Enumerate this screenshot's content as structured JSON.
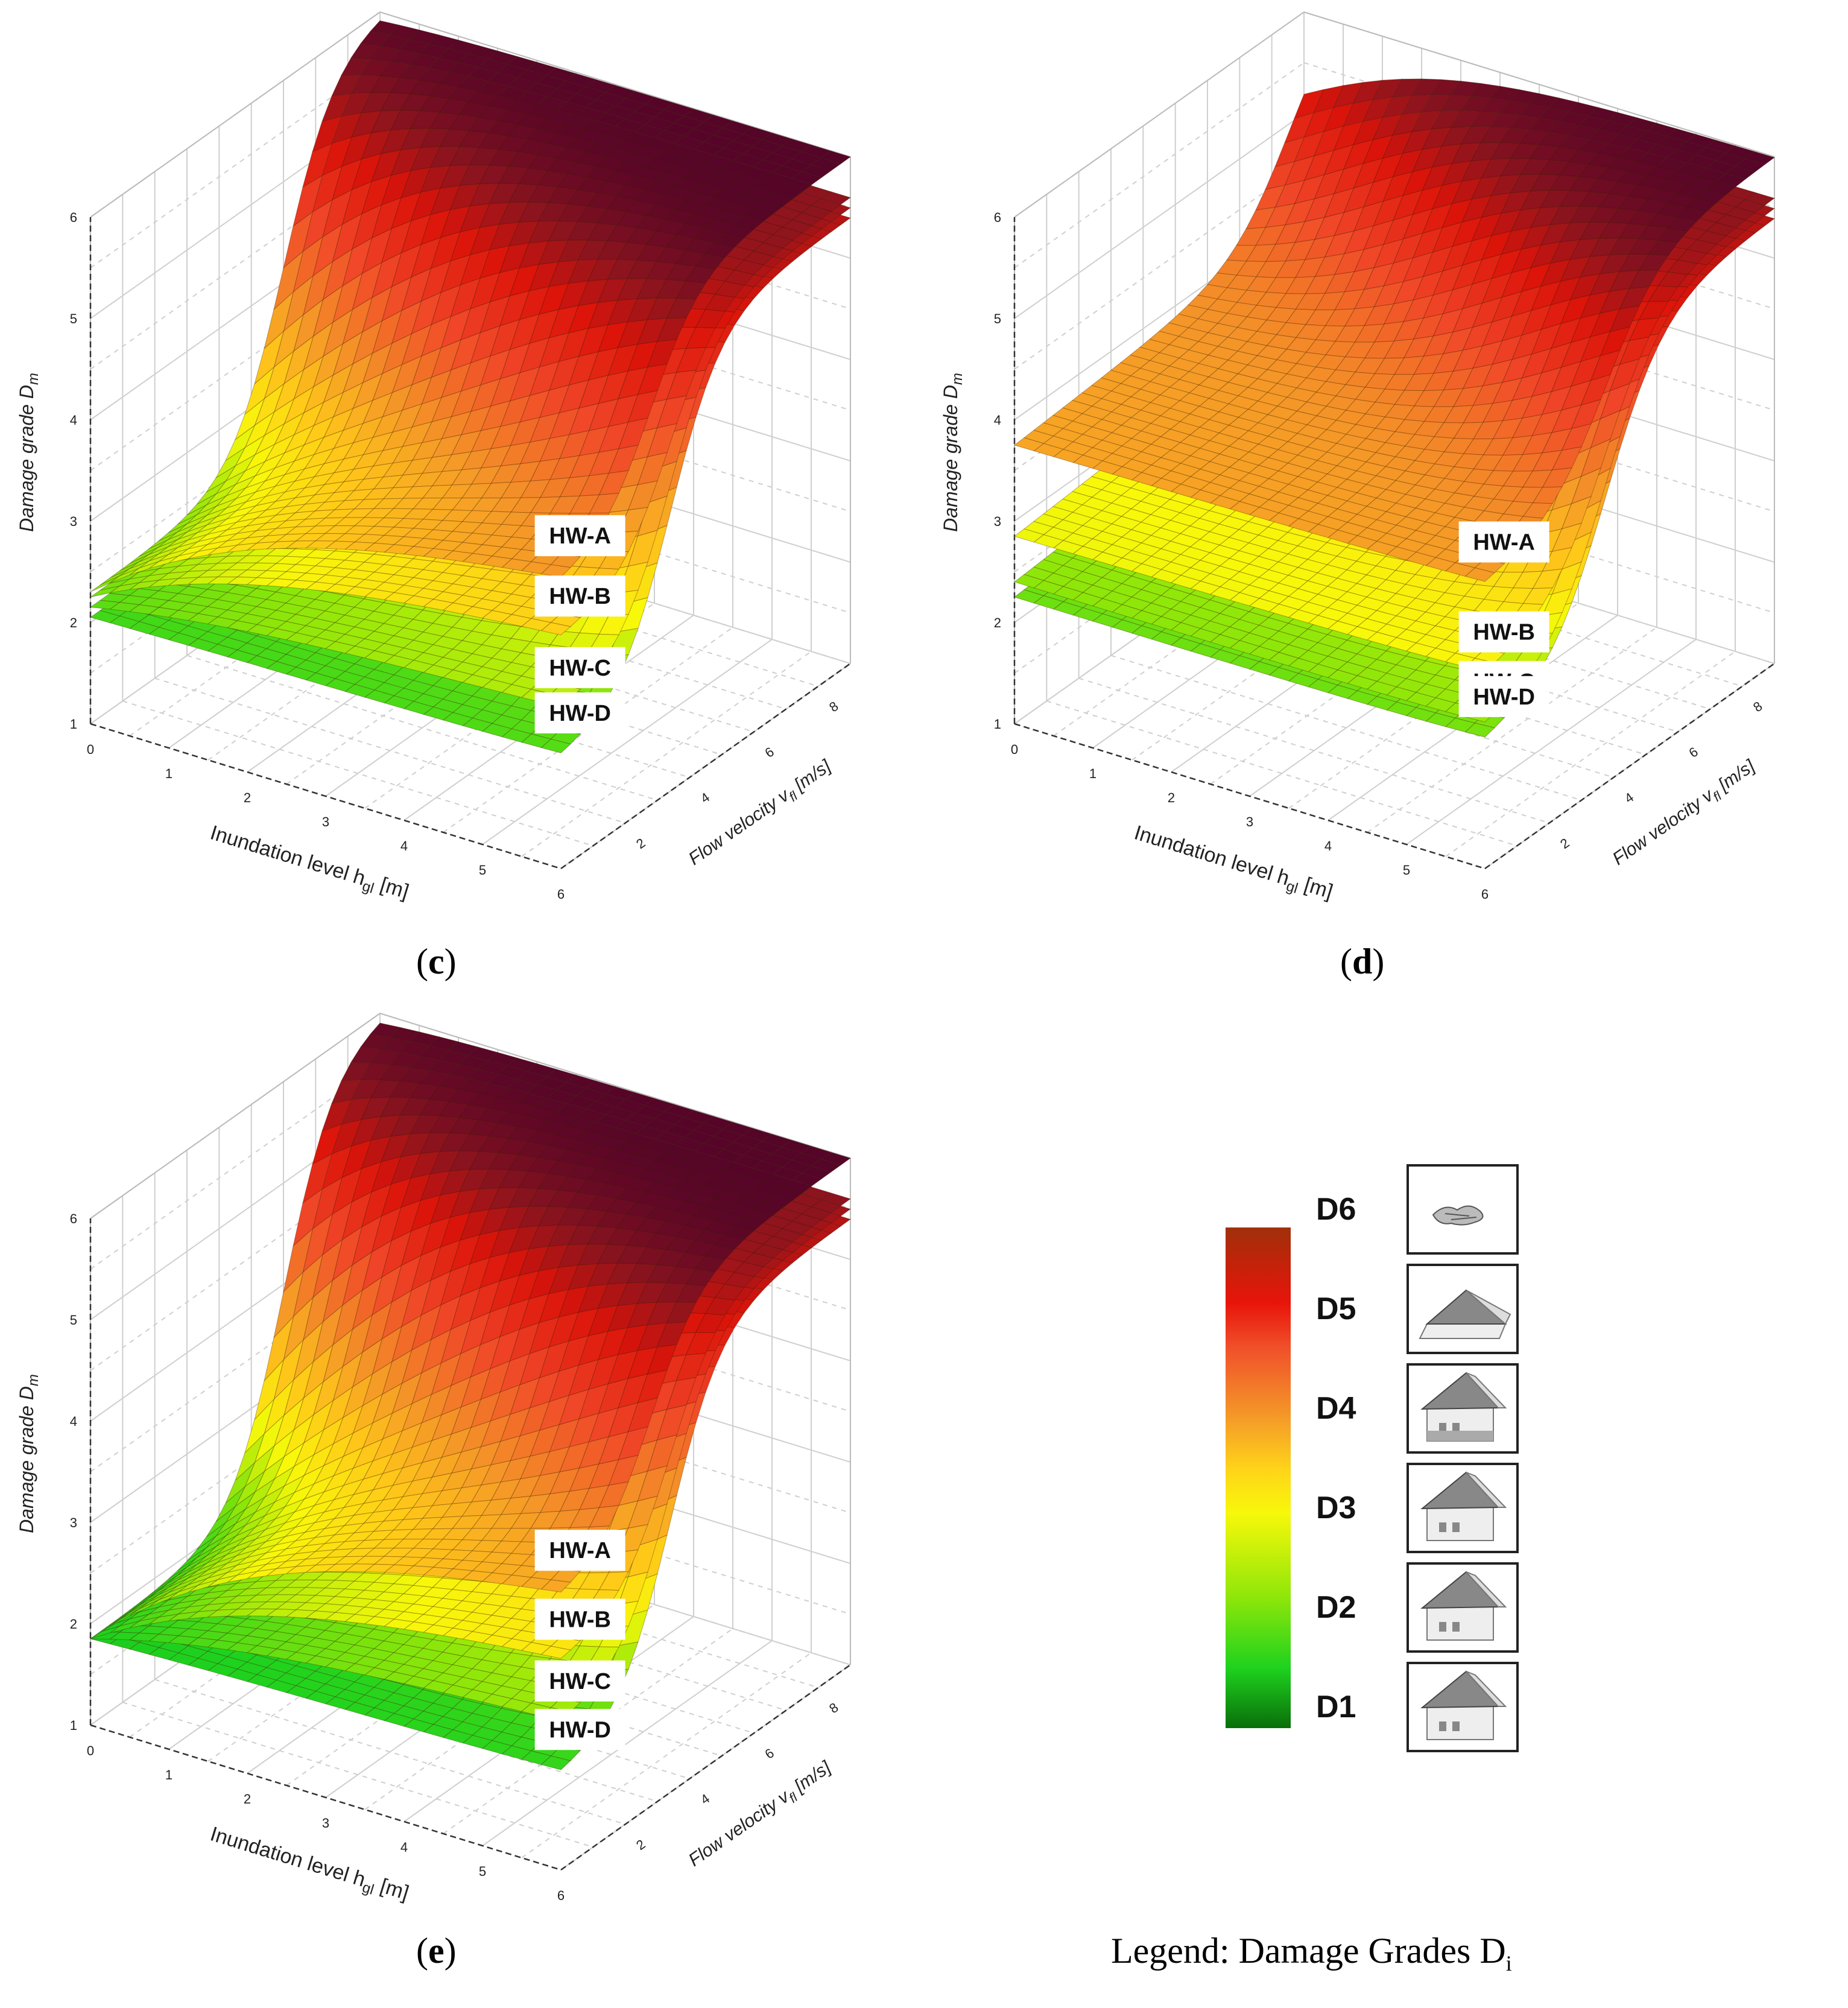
{
  "panels": [
    {
      "id": "c",
      "caption_letter": "c",
      "zlabel": "Damage grade D",
      "zlabel_sub": "m",
      "xlabel": "Inundation level h",
      "xlabel_sub": "gl",
      "xlabel_unit": " [m]",
      "ylabel": "Flow velocity v",
      "ylabel_sub": "fl",
      "ylabel_unit": " [m/s]",
      "surfaces": [
        "HW-A",
        "HW-B",
        "HW-C",
        "HW-D"
      ]
    },
    {
      "id": "d",
      "caption_letter": "d",
      "zlabel": "Damage grade D",
      "zlabel_sub": "m",
      "xlabel": "Inundation level h",
      "xlabel_sub": "gl",
      "xlabel_unit": " [m]",
      "ylabel": "Flow velocity v",
      "ylabel_sub": "fl",
      "ylabel_unit": " [m/s]",
      "surfaces": [
        "HW-A",
        "HW-B",
        "HW-C",
        "HW-D"
      ]
    },
    {
      "id": "e",
      "caption_letter": "e",
      "zlabel": "Damage grade D",
      "zlabel_sub": "m",
      "xlabel": "Inundation level h",
      "xlabel_sub": "gl",
      "xlabel_unit": " [m]",
      "ylabel": "Flow velocity v",
      "ylabel_sub": "fl",
      "ylabel_unit": " [m/s]",
      "surfaces": [
        "HW-A",
        "HW-B",
        "HW-C",
        "HW-D"
      ]
    }
  ],
  "chart_data": [
    {
      "type": "surface",
      "panel": "c",
      "x_ticks": [
        "0",
        "1",
        "2",
        "3",
        "4",
        "5",
        "6"
      ],
      "y_ticks": [
        "2",
        "4",
        "6",
        "8"
      ],
      "z_ticks": [
        "1",
        "2",
        "3",
        "4",
        "5",
        "6"
      ],
      "xlim": [
        0,
        6
      ],
      "ylim": [
        0,
        8
      ],
      "zlim": [
        1,
        6
      ],
      "series": [
        {
          "name": "HW-A",
          "z_at_origin": 2.3,
          "z_at_max_h_low_v": 4.0,
          "z_max": 6.0
        },
        {
          "name": "HW-B",
          "z_at_origin": 2.25,
          "z_at_max_h_low_v": 3.4,
          "z_max": 5.6
        },
        {
          "name": "HW-C",
          "z_at_origin": 2.15,
          "z_at_max_h_low_v": 2.6,
          "z_max": 5.5
        },
        {
          "name": "HW-D",
          "z_at_origin": 2.05,
          "z_at_max_h_low_v": 2.1,
          "z_max": 5.4
        }
      ]
    },
    {
      "type": "surface",
      "panel": "d",
      "x_ticks": [
        "0",
        "1",
        "2",
        "3",
        "4",
        "5",
        "6"
      ],
      "y_ticks": [
        "2",
        "4",
        "6",
        "8"
      ],
      "z_ticks": [
        "1",
        "2",
        "3",
        "4",
        "5",
        "6"
      ],
      "xlim": [
        0,
        6
      ],
      "ylim": [
        0,
        8
      ],
      "zlim": [
        1,
        6
      ],
      "series": [
        {
          "name": "HW-A",
          "z_at_origin": 3.75,
          "z_at_max_h_low_v": 3.8,
          "z_max": 6.0
        },
        {
          "name": "HW-B",
          "z_at_origin": 2.85,
          "z_at_max_h_low_v": 2.9,
          "z_max": 5.6
        },
        {
          "name": "HW-C",
          "z_at_origin": 2.4,
          "z_at_max_h_low_v": 2.4,
          "z_max": 5.5
        },
        {
          "name": "HW-D",
          "z_at_origin": 2.25,
          "z_at_max_h_low_v": 2.25,
          "z_max": 5.4
        }
      ]
    },
    {
      "type": "surface",
      "panel": "e",
      "x_ticks": [
        "0",
        "1",
        "2",
        "3",
        "4",
        "5",
        "6"
      ],
      "y_ticks": [
        "2",
        "4",
        "6",
        "8"
      ],
      "z_ticks": [
        "1",
        "2",
        "3",
        "4",
        "5",
        "6"
      ],
      "xlim": [
        0,
        6
      ],
      "ylim": [
        0,
        8
      ],
      "zlim": [
        1,
        6
      ],
      "series": [
        {
          "name": "HW-A",
          "z_at_origin": 1.85,
          "z_at_max_h_low_v": 3.9,
          "z_max": 6.0
        },
        {
          "name": "HW-B",
          "z_at_origin": 1.85,
          "z_at_max_h_low_v": 3.2,
          "z_max": 5.6
        },
        {
          "name": "HW-C",
          "z_at_origin": 1.85,
          "z_at_max_h_low_v": 2.5,
          "z_max": 5.5
        },
        {
          "name": "HW-D",
          "z_at_origin": 1.85,
          "z_at_max_h_low_v": 1.95,
          "z_max": 5.4
        }
      ]
    }
  ],
  "legend": {
    "caption": "Legend: Damage Grades D",
    "caption_sub": "i",
    "grades": [
      "D6",
      "D5",
      "D4",
      "D3",
      "D2",
      "D1"
    ],
    "icons": [
      "debris-icon",
      "collapsed-house-icon",
      "house-damaged-icon",
      "house-icon",
      "house-icon",
      "house-icon"
    ]
  }
}
